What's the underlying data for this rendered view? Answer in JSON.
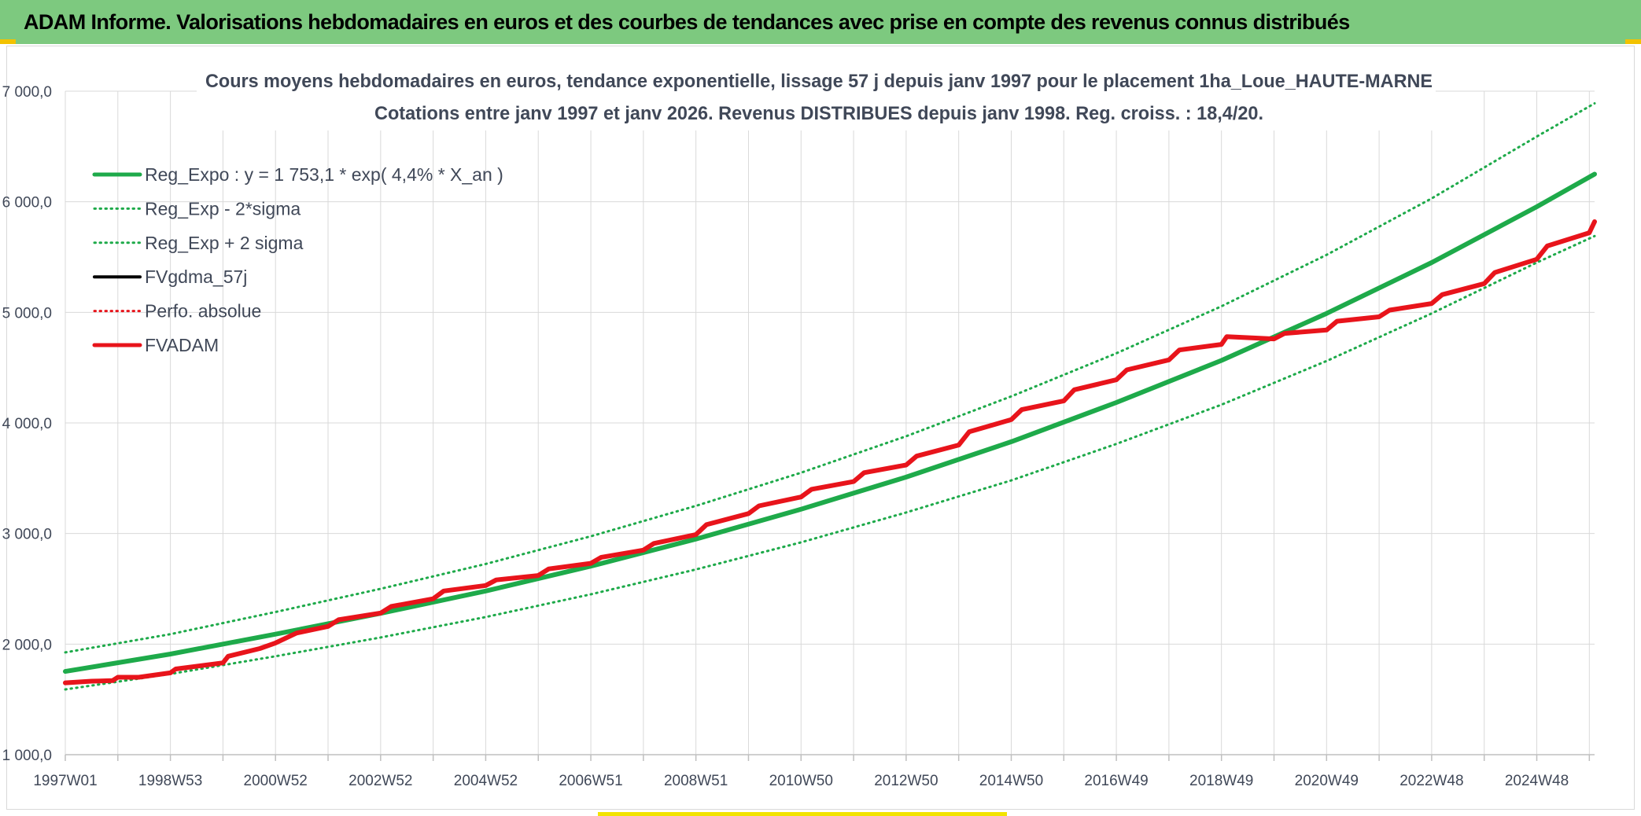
{
  "banner": {
    "title": "ADAM Informe. Valorisations hebdomadaires en euros et des courbes de tendances avec prise en compte des revenus connus distribués",
    "color": "#7dc97f"
  },
  "chart_data": {
    "type": "line",
    "title": "Cours moyens hebdomadaires en euros, tendance exponentielle, lissage 57 j depuis janv 1997 pour le placement 1ha_Loue_HAUTE-MARNE",
    "subtitle": "Cotations entre janv 1997 et janv 2026. Revenus DISTRIBUES depuis janv 1998. Reg. croiss. : 18,4/20.",
    "xlabel": "",
    "ylabel": "",
    "xlim": [
      1997.0,
      2026.1
    ],
    "ylim": [
      1000,
      7000
    ],
    "grid": true,
    "legend_position": "top-left",
    "x_ticks": [
      {
        "x": 1997.0,
        "label": "1997W01"
      },
      {
        "x": 1999.0,
        "label": "1998W53"
      },
      {
        "x": 2001.0,
        "label": "2000W52"
      },
      {
        "x": 2003.0,
        "label": "2002W52"
      },
      {
        "x": 2005.0,
        "label": "2004W52"
      },
      {
        "x": 2007.0,
        "label": "2006W51"
      },
      {
        "x": 2009.0,
        "label": "2008W51"
      },
      {
        "x": 2011.0,
        "label": "2010W50"
      },
      {
        "x": 2013.0,
        "label": "2012W50"
      },
      {
        "x": 2015.0,
        "label": "2014W50"
      },
      {
        "x": 2017.0,
        "label": "2016W49"
      },
      {
        "x": 2019.0,
        "label": "2018W49"
      },
      {
        "x": 2021.0,
        "label": "2020W49"
      },
      {
        "x": 2023.0,
        "label": "2022W48"
      },
      {
        "x": 2025.0,
        "label": "2024W48"
      }
    ],
    "y_ticks": [
      {
        "y": 1000,
        "label": "1 000,0"
      },
      {
        "y": 2000,
        "label": "2 000,0"
      },
      {
        "y": 3000,
        "label": "3 000,0"
      },
      {
        "y": 4000,
        "label": "4 000,0"
      },
      {
        "y": 5000,
        "label": "5 000,0"
      },
      {
        "y": 6000,
        "label": "6 000,0"
      },
      {
        "y": 7000,
        "label": "7 000,0"
      }
    ],
    "series": [
      {
        "name": "Reg_Expo : y = 1 753,1 * exp( 4,4% *  X_an )",
        "color": "#1eaa4a",
        "style": "solid",
        "width": 6,
        "points": [
          [
            1997.0,
            1753
          ],
          [
            1999.0,
            1910
          ],
          [
            2001.0,
            2090
          ],
          [
            2003.0,
            2278
          ],
          [
            2005.0,
            2480
          ],
          [
            2007.0,
            2705
          ],
          [
            2009.0,
            2950
          ],
          [
            2011.0,
            3220
          ],
          [
            2013.0,
            3510
          ],
          [
            2015.0,
            3830
          ],
          [
            2017.0,
            4185
          ],
          [
            2019.0,
            4565
          ],
          [
            2021.0,
            4990
          ],
          [
            2023.0,
            5450
          ],
          [
            2025.0,
            5955
          ],
          [
            2026.1,
            6250
          ]
        ]
      },
      {
        "name": "Reg_Exp - 2*sigma",
        "color": "#1eaa4a",
        "style": "dotted",
        "width": 3,
        "points": [
          [
            1997.0,
            1590
          ],
          [
            1999.0,
            1730
          ],
          [
            2001.0,
            1890
          ],
          [
            2003.0,
            2060
          ],
          [
            2005.0,
            2245
          ],
          [
            2007.0,
            2450
          ],
          [
            2009.0,
            2675
          ],
          [
            2011.0,
            2920
          ],
          [
            2013.0,
            3190
          ],
          [
            2015.0,
            3480
          ],
          [
            2017.0,
            3810
          ],
          [
            2019.0,
            4165
          ],
          [
            2021.0,
            4560
          ],
          [
            2023.0,
            4990
          ],
          [
            2025.0,
            5450
          ],
          [
            2026.1,
            5690
          ]
        ]
      },
      {
        "name": "Reg_Exp + 2 sigma",
        "color": "#1eaa4a",
        "style": "dotted",
        "width": 3,
        "points": [
          [
            1997.0,
            1925
          ],
          [
            1999.0,
            2090
          ],
          [
            2001.0,
            2290
          ],
          [
            2003.0,
            2500
          ],
          [
            2005.0,
            2725
          ],
          [
            2007.0,
            2975
          ],
          [
            2009.0,
            3250
          ],
          [
            2011.0,
            3550
          ],
          [
            2013.0,
            3880
          ],
          [
            2015.0,
            4240
          ],
          [
            2017.0,
            4630
          ],
          [
            2019.0,
            5055
          ],
          [
            2021.0,
            5520
          ],
          [
            2023.0,
            6030
          ],
          [
            2025.0,
            6590
          ],
          [
            2026.1,
            6890
          ]
        ]
      },
      {
        "name": "FVgdma_57j",
        "color": "#000000",
        "style": "solid",
        "width": 4,
        "points": [
          [
            1997.0,
            1650
          ],
          [
            1997.5,
            1665
          ],
          [
            1997.9,
            1670
          ],
          [
            1998.0,
            1700
          ],
          [
            1998.4,
            1700
          ],
          [
            1999.0,
            1740
          ],
          [
            1999.1,
            1775
          ],
          [
            2000.0,
            1830
          ],
          [
            2000.1,
            1890
          ],
          [
            2000.7,
            1960
          ],
          [
            2001.0,
            2010
          ],
          [
            2001.4,
            2100
          ],
          [
            2002.0,
            2160
          ],
          [
            2002.2,
            2220
          ],
          [
            2003.0,
            2280
          ],
          [
            2003.2,
            2340
          ],
          [
            2004.0,
            2410
          ],
          [
            2004.2,
            2480
          ],
          [
            2005.0,
            2530
          ],
          [
            2005.2,
            2580
          ],
          [
            2006.0,
            2620
          ],
          [
            2006.2,
            2680
          ],
          [
            2007.0,
            2730
          ],
          [
            2007.2,
            2785
          ],
          [
            2008.0,
            2850
          ],
          [
            2008.2,
            2910
          ],
          [
            2009.0,
            2990
          ],
          [
            2009.2,
            3080
          ],
          [
            2010.0,
            3180
          ],
          [
            2010.2,
            3250
          ],
          [
            2011.0,
            3330
          ],
          [
            2011.2,
            3400
          ],
          [
            2012.0,
            3470
          ],
          [
            2012.2,
            3550
          ],
          [
            2013.0,
            3620
          ],
          [
            2013.2,
            3700
          ],
          [
            2014.0,
            3800
          ],
          [
            2014.2,
            3920
          ],
          [
            2015.0,
            4030
          ],
          [
            2015.2,
            4120
          ],
          [
            2016.0,
            4200
          ],
          [
            2016.2,
            4300
          ],
          [
            2017.0,
            4390
          ],
          [
            2017.2,
            4480
          ],
          [
            2018.0,
            4570
          ],
          [
            2018.2,
            4660
          ],
          [
            2019.0,
            4710
          ],
          [
            2019.1,
            4780
          ],
          [
            2020.0,
            4760
          ],
          [
            2020.2,
            4810
          ],
          [
            2021.0,
            4840
          ],
          [
            2021.2,
            4920
          ],
          [
            2022.0,
            4960
          ],
          [
            2022.2,
            5020
          ],
          [
            2023.0,
            5080
          ],
          [
            2023.2,
            5160
          ],
          [
            2024.0,
            5260
          ],
          [
            2024.2,
            5360
          ],
          [
            2025.0,
            5480
          ],
          [
            2025.2,
            5600
          ],
          [
            2026.0,
            5720
          ],
          [
            2026.1,
            5820
          ]
        ]
      },
      {
        "name": "Perfo. absolue",
        "color": "#e8141b",
        "style": "dotted",
        "width": 3,
        "points": [
          [
            1997.0,
            1650
          ],
          [
            1997.5,
            1665
          ],
          [
            1997.9,
            1670
          ],
          [
            1998.0,
            1700
          ],
          [
            1998.4,
            1700
          ],
          [
            1999.0,
            1740
          ],
          [
            1999.1,
            1775
          ],
          [
            2000.0,
            1830
          ],
          [
            2000.1,
            1890
          ],
          [
            2000.7,
            1960
          ],
          [
            2001.0,
            2010
          ],
          [
            2001.4,
            2100
          ],
          [
            2002.0,
            2160
          ],
          [
            2002.2,
            2220
          ],
          [
            2003.0,
            2280
          ],
          [
            2003.2,
            2340
          ],
          [
            2004.0,
            2410
          ],
          [
            2004.2,
            2480
          ],
          [
            2005.0,
            2530
          ],
          [
            2005.2,
            2580
          ],
          [
            2006.0,
            2620
          ],
          [
            2006.2,
            2680
          ],
          [
            2007.0,
            2730
          ],
          [
            2007.2,
            2785
          ],
          [
            2008.0,
            2850
          ],
          [
            2008.2,
            2910
          ],
          [
            2009.0,
            2990
          ],
          [
            2009.2,
            3080
          ],
          [
            2010.0,
            3180
          ],
          [
            2010.2,
            3250
          ],
          [
            2011.0,
            3330
          ],
          [
            2011.2,
            3400
          ],
          [
            2012.0,
            3470
          ],
          [
            2012.2,
            3550
          ],
          [
            2013.0,
            3620
          ],
          [
            2013.2,
            3700
          ],
          [
            2014.0,
            3800
          ],
          [
            2014.2,
            3920
          ],
          [
            2015.0,
            4030
          ],
          [
            2015.2,
            4120
          ],
          [
            2016.0,
            4200
          ],
          [
            2016.2,
            4300
          ],
          [
            2017.0,
            4390
          ],
          [
            2017.2,
            4480
          ],
          [
            2018.0,
            4570
          ],
          [
            2018.2,
            4660
          ],
          [
            2019.0,
            4710
          ],
          [
            2019.1,
            4780
          ],
          [
            2020.0,
            4760
          ],
          [
            2020.2,
            4810
          ],
          [
            2021.0,
            4840
          ],
          [
            2021.2,
            4920
          ],
          [
            2022.0,
            4960
          ],
          [
            2022.2,
            5020
          ],
          [
            2023.0,
            5080
          ],
          [
            2023.2,
            5160
          ],
          [
            2024.0,
            5260
          ],
          [
            2024.2,
            5360
          ],
          [
            2025.0,
            5480
          ],
          [
            2025.2,
            5600
          ],
          [
            2026.0,
            5720
          ],
          [
            2026.1,
            5820
          ]
        ]
      },
      {
        "name": "FVADAM",
        "color": "#e8141b",
        "style": "solid",
        "width": 6,
        "points": [
          [
            1997.0,
            1650
          ],
          [
            1997.5,
            1665
          ],
          [
            1997.9,
            1670
          ],
          [
            1998.0,
            1700
          ],
          [
            1998.4,
            1700
          ],
          [
            1999.0,
            1740
          ],
          [
            1999.1,
            1775
          ],
          [
            2000.0,
            1830
          ],
          [
            2000.1,
            1890
          ],
          [
            2000.7,
            1960
          ],
          [
            2001.0,
            2010
          ],
          [
            2001.4,
            2100
          ],
          [
            2002.0,
            2160
          ],
          [
            2002.2,
            2220
          ],
          [
            2003.0,
            2280
          ],
          [
            2003.2,
            2340
          ],
          [
            2004.0,
            2410
          ],
          [
            2004.2,
            2480
          ],
          [
            2005.0,
            2530
          ],
          [
            2005.2,
            2580
          ],
          [
            2006.0,
            2620
          ],
          [
            2006.2,
            2680
          ],
          [
            2007.0,
            2730
          ],
          [
            2007.2,
            2785
          ],
          [
            2008.0,
            2850
          ],
          [
            2008.2,
            2910
          ],
          [
            2009.0,
            2990
          ],
          [
            2009.2,
            3080
          ],
          [
            2010.0,
            3180
          ],
          [
            2010.2,
            3250
          ],
          [
            2011.0,
            3330
          ],
          [
            2011.2,
            3400
          ],
          [
            2012.0,
            3470
          ],
          [
            2012.2,
            3550
          ],
          [
            2013.0,
            3620
          ],
          [
            2013.2,
            3700
          ],
          [
            2014.0,
            3800
          ],
          [
            2014.2,
            3920
          ],
          [
            2015.0,
            4030
          ],
          [
            2015.2,
            4120
          ],
          [
            2016.0,
            4200
          ],
          [
            2016.2,
            4300
          ],
          [
            2017.0,
            4390
          ],
          [
            2017.2,
            4480
          ],
          [
            2018.0,
            4570
          ],
          [
            2018.2,
            4660
          ],
          [
            2019.0,
            4710
          ],
          [
            2019.1,
            4780
          ],
          [
            2020.0,
            4760
          ],
          [
            2020.2,
            4810
          ],
          [
            2021.0,
            4840
          ],
          [
            2021.2,
            4920
          ],
          [
            2022.0,
            4960
          ],
          [
            2022.2,
            5020
          ],
          [
            2023.0,
            5080
          ],
          [
            2023.2,
            5160
          ],
          [
            2024.0,
            5260
          ],
          [
            2024.2,
            5360
          ],
          [
            2025.0,
            5480
          ],
          [
            2025.2,
            5600
          ],
          [
            2026.0,
            5720
          ],
          [
            2026.1,
            5820
          ]
        ]
      }
    ]
  }
}
